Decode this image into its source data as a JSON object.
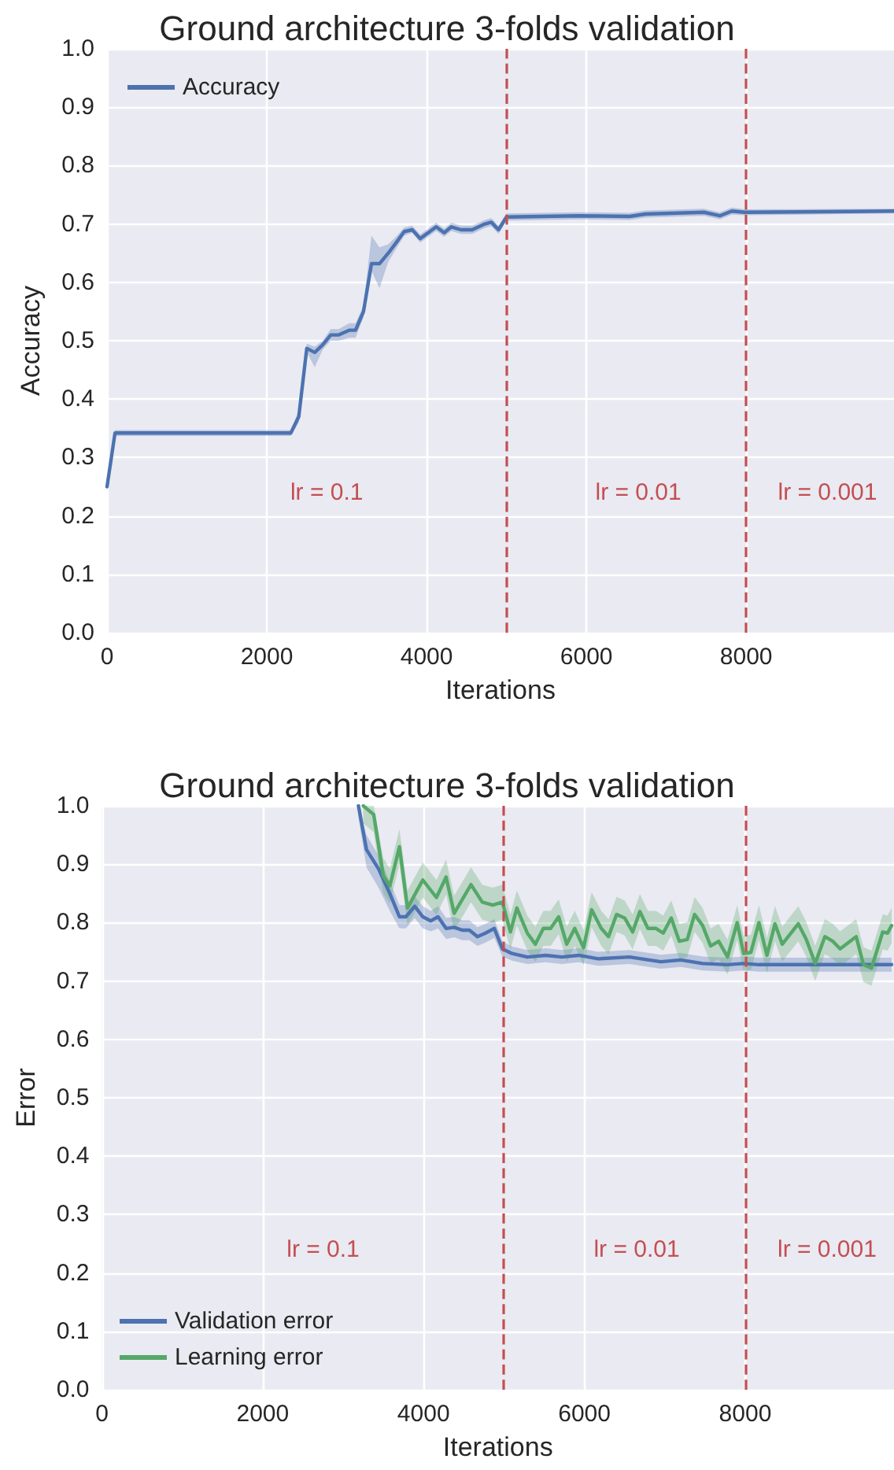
{
  "chart_data": [
    {
      "type": "line",
      "title": "Ground architecture 3-folds validation",
      "xlabel": "Iterations",
      "ylabel": "Accuracy",
      "xlim": [
        0,
        9850
      ],
      "ylim": [
        0,
        1
      ],
      "xticks": [
        0,
        2000,
        4000,
        6000,
        8000
      ],
      "yticks": [
        {
          "value": 0,
          "label": "0.0"
        },
        {
          "value": 0.1,
          "label": "0.1"
        },
        {
          "value": 0.2,
          "label": "0.2"
        },
        {
          "value": 0.3,
          "label": "0.3"
        },
        {
          "value": 0.4,
          "label": "0.4"
        },
        {
          "value": 0.5,
          "label": "0.5"
        },
        {
          "value": 0.6,
          "label": "0.6"
        },
        {
          "value": 0.7,
          "label": "0.7"
        },
        {
          "value": 0.8,
          "label": "0.8"
        },
        {
          "value": 0.9,
          "label": "0.9"
        },
        {
          "value": 1,
          "label": "1.0"
        }
      ],
      "grid": true,
      "legend": "top left",
      "marker": "none",
      "line_style": "solid",
      "series": [
        {
          "name": "Accuracy",
          "color": "#4c72b0",
          "x": [
            0,
            100,
            2300,
            2400,
            2500,
            2600,
            2700,
            2800,
            2900,
            3030,
            3110,
            3210,
            3310,
            3410,
            3520,
            3630,
            3720,
            3820,
            3920,
            4020,
            4120,
            4220,
            4310,
            4430,
            4570,
            4730,
            4810,
            4900,
            5000,
            5890,
            6540,
            6740,
            7470,
            7670,
            7820,
            7980,
            9850
          ],
          "values": [
            0.25,
            0.342,
            0.342,
            0.37,
            0.487,
            0.48,
            0.493,
            0.51,
            0.51,
            0.518,
            0.518,
            0.55,
            0.632,
            0.632,
            0.65,
            0.67,
            0.687,
            0.69,
            0.675,
            0.685,
            0.695,
            0.685,
            0.695,
            0.69,
            0.69,
            0.7,
            0.703,
            0.69,
            0.712,
            0.714,
            0.713,
            0.717,
            0.72,
            0.714,
            0.722,
            0.72,
            0.722
          ],
          "lower": [
            0.245,
            0.337,
            0.337,
            0.36,
            0.48,
            0.455,
            0.485,
            0.5,
            0.5,
            0.505,
            0.505,
            0.54,
            0.62,
            0.59,
            0.635,
            0.66,
            0.68,
            0.685,
            0.668,
            0.678,
            0.688,
            0.678,
            0.688,
            0.683,
            0.683,
            0.693,
            0.696,
            0.683,
            0.706,
            0.708,
            0.707,
            0.711,
            0.714,
            0.708,
            0.716,
            0.715,
            0.718
          ],
          "upper": [
            0.255,
            0.347,
            0.347,
            0.38,
            0.495,
            0.49,
            0.5,
            0.52,
            0.52,
            0.53,
            0.53,
            0.56,
            0.68,
            0.66,
            0.665,
            0.68,
            0.694,
            0.697,
            0.682,
            0.692,
            0.702,
            0.692,
            0.702,
            0.697,
            0.697,
            0.707,
            0.71,
            0.697,
            0.718,
            0.72,
            0.719,
            0.723,
            0.726,
            0.72,
            0.728,
            0.725,
            0.726
          ]
        }
      ],
      "ref_lines": [
        {
          "axis": "x",
          "value": 5000,
          "color": "#c44e52",
          "line_style": "dashed"
        },
        {
          "axis": "x",
          "value": 8000,
          "color": "#c44e52",
          "line_style": "dashed"
        }
      ],
      "annotations": [
        "lr = 0.1",
        "lr = 0.01",
        "lr = 0.001"
      ]
    },
    {
      "type": "line",
      "title": "Ground architecture 3-folds validation",
      "xlabel": "Iterations",
      "ylabel": "Error",
      "xlim": [
        0,
        9850
      ],
      "ylim": [
        0,
        1
      ],
      "xticks": [
        0,
        2000,
        4000,
        6000,
        8000
      ],
      "yticks": [
        {
          "value": 0,
          "label": "0.0"
        },
        {
          "value": 0.1,
          "label": "0.1"
        },
        {
          "value": 0.2,
          "label": "0.2"
        },
        {
          "value": 0.3,
          "label": "0.3"
        },
        {
          "value": 0.4,
          "label": "0.4"
        },
        {
          "value": 0.5,
          "label": "0.5"
        },
        {
          "value": 0.6,
          "label": "0.6"
        },
        {
          "value": 0.7,
          "label": "0.7"
        },
        {
          "value": 0.8,
          "label": "0.8"
        },
        {
          "value": 0.9,
          "label": "0.9"
        },
        {
          "value": 1,
          "label": "1.0"
        }
      ],
      "grid": true,
      "legend": "bottom left",
      "marker": "none",
      "line_style": "solid",
      "series": [
        {
          "name": "Validation error",
          "color": "#4c72b0",
          "x": [
            3190,
            3290,
            3440,
            3580,
            3700,
            3780,
            3890,
            3990,
            4090,
            4180,
            4280,
            4380,
            4480,
            4570,
            4670,
            4770,
            4880,
            4980,
            5100,
            5290,
            5520,
            5720,
            5930,
            6170,
            6560,
            6950,
            7200,
            7470,
            7780,
            7980,
            8170,
            9820
          ],
          "values": [
            1.0,
            0.925,
            0.892,
            0.85,
            0.81,
            0.81,
            0.828,
            0.81,
            0.803,
            0.81,
            0.79,
            0.792,
            0.787,
            0.787,
            0.776,
            0.782,
            0.79,
            0.755,
            0.747,
            0.741,
            0.744,
            0.741,
            0.744,
            0.738,
            0.741,
            0.733,
            0.736,
            0.73,
            0.728,
            0.73,
            0.728,
            0.728
          ],
          "lower": [
            0.98,
            0.895,
            0.86,
            0.82,
            0.79,
            0.79,
            0.808,
            0.79,
            0.785,
            0.79,
            0.772,
            0.775,
            0.77,
            0.77,
            0.76,
            0.766,
            0.774,
            0.742,
            0.735,
            0.729,
            0.732,
            0.729,
            0.732,
            0.726,
            0.729,
            0.721,
            0.724,
            0.718,
            0.716,
            0.718,
            0.716,
            0.716
          ],
          "upper": [
            1.0,
            0.95,
            0.915,
            0.87,
            0.83,
            0.83,
            0.845,
            0.828,
            0.82,
            0.828,
            0.808,
            0.81,
            0.804,
            0.804,
            0.792,
            0.798,
            0.806,
            0.768,
            0.759,
            0.753,
            0.756,
            0.753,
            0.756,
            0.75,
            0.753,
            0.745,
            0.748,
            0.742,
            0.74,
            0.742,
            0.74,
            0.74
          ]
        },
        {
          "name": "Learning error",
          "color": "#55a868",
          "x": [
            3250,
            3380,
            3500,
            3580,
            3700,
            3800,
            3990,
            4160,
            4280,
            4380,
            4590,
            4730,
            4860,
            4980,
            5080,
            5160,
            5290,
            5390,
            5490,
            5580,
            5680,
            5780,
            5880,
            5990,
            6090,
            6210,
            6300,
            6400,
            6500,
            6600,
            6690,
            6790,
            6890,
            6980,
            7080,
            7180,
            7280,
            7370,
            7470,
            7570,
            7670,
            7780,
            7900,
            7980,
            8070,
            8170,
            8270,
            8370,
            8460,
            8660,
            8760,
            8870,
            8990,
            9090,
            9180,
            9380,
            9470,
            9570,
            9710,
            9770,
            9820
          ],
          "values": [
            1.0,
            0.985,
            0.88,
            0.863,
            0.93,
            0.825,
            0.873,
            0.843,
            0.878,
            0.816,
            0.865,
            0.835,
            0.83,
            0.835,
            0.784,
            0.825,
            0.782,
            0.763,
            0.79,
            0.79,
            0.81,
            0.763,
            0.79,
            0.757,
            0.822,
            0.79,
            0.776,
            0.814,
            0.808,
            0.784,
            0.819,
            0.79,
            0.79,
            0.782,
            0.808,
            0.768,
            0.771,
            0.814,
            0.795,
            0.76,
            0.768,
            0.741,
            0.8,
            0.747,
            0.749,
            0.8,
            0.744,
            0.798,
            0.763,
            0.798,
            0.771,
            0.73,
            0.776,
            0.768,
            0.755,
            0.776,
            0.728,
            0.722,
            0.784,
            0.782,
            0.795
          ],
          "lower": [
            0.97,
            0.955,
            0.85,
            0.833,
            0.9,
            0.795,
            0.843,
            0.813,
            0.848,
            0.786,
            0.835,
            0.805,
            0.8,
            0.805,
            0.754,
            0.795,
            0.752,
            0.733,
            0.76,
            0.76,
            0.78,
            0.733,
            0.76,
            0.727,
            0.792,
            0.76,
            0.746,
            0.784,
            0.778,
            0.754,
            0.789,
            0.76,
            0.76,
            0.752,
            0.778,
            0.738,
            0.741,
            0.784,
            0.765,
            0.73,
            0.738,
            0.711,
            0.77,
            0.717,
            0.719,
            0.77,
            0.714,
            0.768,
            0.733,
            0.768,
            0.741,
            0.7,
            0.746,
            0.738,
            0.725,
            0.746,
            0.698,
            0.692,
            0.754,
            0.752,
            0.765
          ],
          "upper": [
            1.0,
            1.0,
            0.91,
            0.893,
            0.96,
            0.855,
            0.903,
            0.873,
            0.908,
            0.846,
            0.895,
            0.865,
            0.86,
            0.865,
            0.814,
            0.855,
            0.812,
            0.793,
            0.82,
            0.82,
            0.84,
            0.793,
            0.82,
            0.787,
            0.852,
            0.82,
            0.806,
            0.844,
            0.838,
            0.814,
            0.849,
            0.82,
            0.82,
            0.812,
            0.838,
            0.798,
            0.801,
            0.844,
            0.825,
            0.79,
            0.798,
            0.771,
            0.83,
            0.777,
            0.779,
            0.83,
            0.774,
            0.828,
            0.793,
            0.828,
            0.801,
            0.76,
            0.806,
            0.798,
            0.785,
            0.806,
            0.758,
            0.752,
            0.814,
            0.812,
            0.825
          ]
        }
      ],
      "ref_lines": [
        {
          "axis": "x",
          "value": 5000,
          "color": "#c44e52",
          "line_style": "dashed"
        },
        {
          "axis": "x",
          "value": 8000,
          "color": "#c44e52",
          "line_style": "dashed"
        }
      ],
      "annotations": [
        "lr = 0.1",
        "lr = 0.01",
        "lr = 0.001"
      ]
    }
  ]
}
